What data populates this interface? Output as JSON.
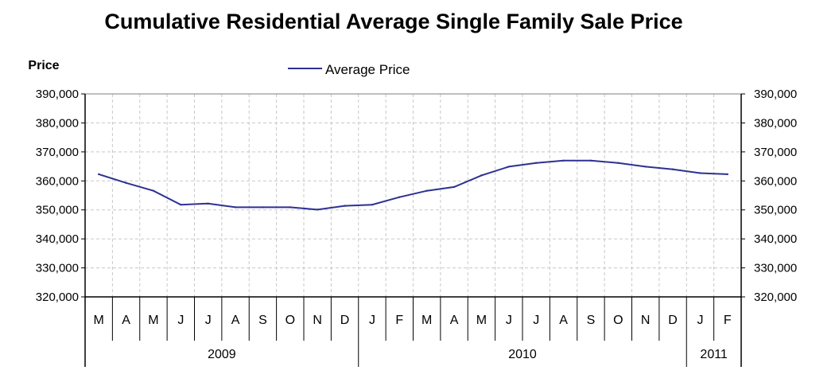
{
  "chart_data": {
    "type": "line",
    "title": "Cumulative Residential Average Single Family Sale Price",
    "ylabel": "Price",
    "xlabel": "",
    "ylim": [
      320000,
      390000
    ],
    "y_ticks": [
      "320,000",
      "330,000",
      "340,000",
      "350,000",
      "360,000",
      "370,000",
      "380,000",
      "390,000"
    ],
    "grid": true,
    "legend_position": "top-center",
    "secondary_y_axis": true,
    "categories": [
      "M",
      "A",
      "M",
      "J",
      "J",
      "A",
      "S",
      "O",
      "N",
      "D",
      "J",
      "F",
      "M",
      "A",
      "M",
      "J",
      "J",
      "A",
      "S",
      "O",
      "N",
      "D",
      "J",
      "F"
    ],
    "year_groups": [
      {
        "label": "2009",
        "count": 10
      },
      {
        "label": "2010",
        "count": 12
      },
      {
        "label": "2011",
        "count": 2
      }
    ],
    "series": [
      {
        "name": "Average Price",
        "color": "#2e3192",
        "values": [
          362300,
          359300,
          356600,
          351800,
          352200,
          350900,
          350900,
          350900,
          350100,
          351400,
          351800,
          354400,
          356600,
          357900,
          361900,
          364900,
          366200,
          367000,
          367000,
          366200,
          364900,
          364000,
          362700,
          362300
        ]
      }
    ]
  }
}
